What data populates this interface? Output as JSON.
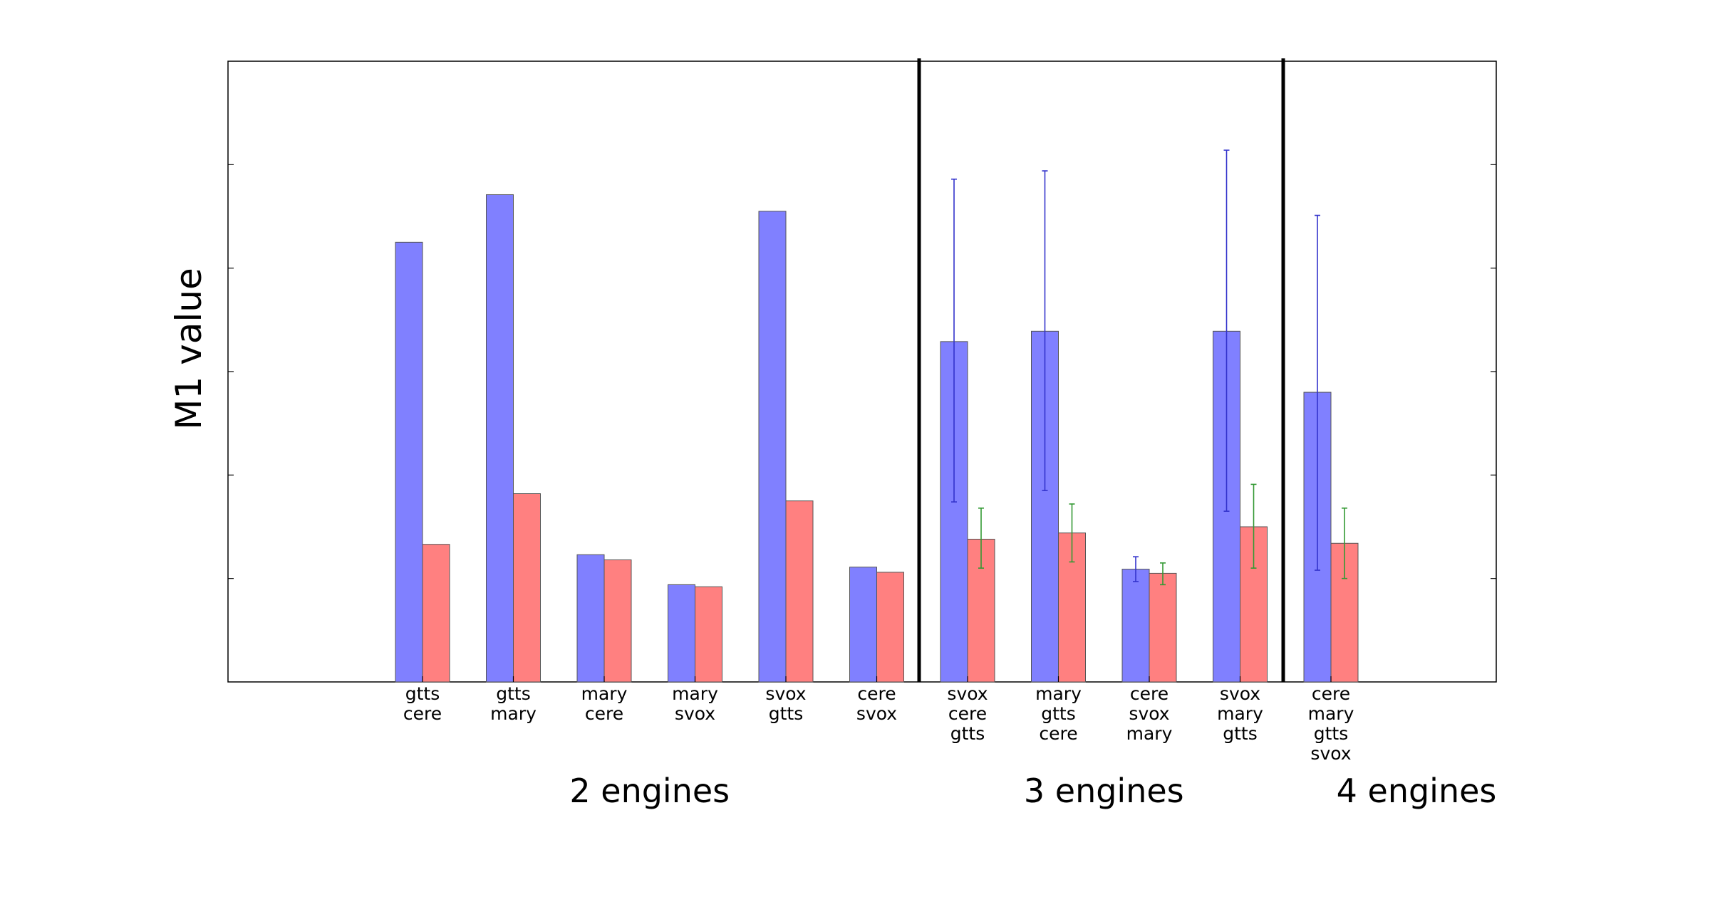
{
  "chart_data": {
    "type": "bar",
    "title": "",
    "xlabel": "",
    "ylabel": "M1 value",
    "ylim": [
      0,
      6
    ],
    "grid": false,
    "legend": "none",
    "show_y_tick_labels": false,
    "categories": [
      [
        "gtts",
        "cere"
      ],
      [
        "gtts",
        "mary"
      ],
      [
        "mary",
        "cere"
      ],
      [
        "mary",
        "svox"
      ],
      [
        "svox",
        "gtts"
      ],
      [
        "cere",
        "svox"
      ],
      [
        "svox",
        "cere",
        "gtts"
      ],
      [
        "mary",
        "gtts",
        "cere"
      ],
      [
        "cere",
        "svox",
        "mary"
      ],
      [
        "svox",
        "mary",
        "gtts"
      ],
      [
        "cere",
        "mary",
        "gtts",
        "svox"
      ]
    ],
    "groups": [
      {
        "label": "2 engines",
        "start": 0,
        "end": 5
      },
      {
        "label": "3 engines",
        "start": 6,
        "end": 9
      },
      {
        "label": "4 engines",
        "start": 10,
        "end": 10
      }
    ],
    "series": [
      {
        "color": "#8080ff",
        "error_color": "#3333cc",
        "values": [
          4.25,
          4.71,
          1.23,
          0.94,
          4.55,
          1.11,
          3.29,
          3.39,
          1.09,
          3.39,
          2.8
        ],
        "errors": [
          null,
          null,
          null,
          null,
          null,
          null,
          [
            1.74,
            4.86
          ],
          [
            1.85,
            4.94
          ],
          [
            0.97,
            1.21
          ],
          [
            1.65,
            5.14
          ],
          [
            1.08,
            4.51
          ]
        ]
      },
      {
        "color": "#ff8080",
        "error_color": "#339933",
        "values": [
          1.33,
          1.82,
          1.18,
          0.92,
          1.75,
          1.06,
          1.38,
          1.44,
          1.05,
          1.5,
          1.34
        ],
        "errors": [
          null,
          null,
          null,
          null,
          null,
          null,
          [
            1.1,
            1.68
          ],
          [
            1.16,
            1.72
          ],
          [
            0.94,
            1.15
          ],
          [
            1.1,
            1.91
          ],
          [
            1.0,
            1.68
          ]
        ]
      }
    ]
  }
}
